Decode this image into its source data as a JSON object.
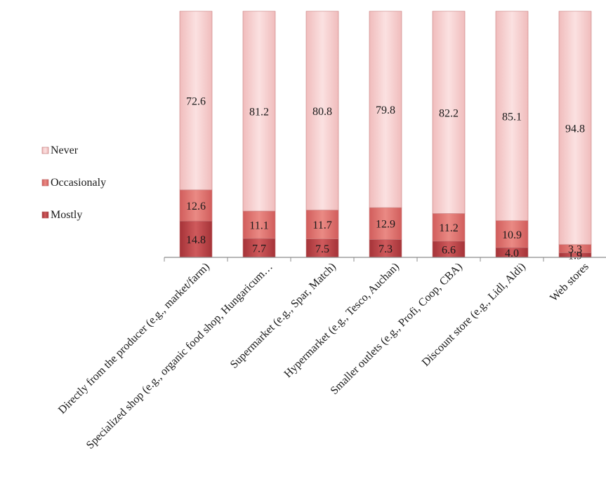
{
  "chart_data": {
    "type": "bar",
    "stacked": true,
    "orientation": "vertical",
    "categories": [
      "Directly from the producer (e.g., market/farm)",
      "Specialized shop (e.g., organic food shop, Hungaricum…",
      "Supermarket (e.g., Spar, Match)",
      "Hypermarket (e.g., Tesco, Auchan)",
      "Smaller outlets (e.g., Profi, Coop, CBA)",
      "Discount store (e.g., Lidl, Aldi)",
      "Web stores"
    ],
    "series": [
      {
        "name": "Mostly",
        "color": "#c0474a",
        "values": [
          14.8,
          7.7,
          7.5,
          7.3,
          6.6,
          4.0,
          1.9
        ]
      },
      {
        "name": "Occasionaly",
        "color": "#dd6b66",
        "values": [
          12.6,
          11.1,
          11.7,
          12.9,
          11.2,
          10.9,
          3.3
        ]
      },
      {
        "name": "Never",
        "color": "#f4c9c9",
        "values": [
          72.6,
          81.2,
          80.8,
          79.8,
          82.2,
          85.1,
          94.8
        ]
      }
    ],
    "value_labels": [
      [
        "14.8",
        "7.7",
        "7.5",
        "7.3",
        "6.6",
        "4.0",
        "1.9"
      ],
      [
        "12.6",
        "11.1",
        "11.7",
        "12.9",
        "11.2",
        "10.9",
        "3.3"
      ],
      [
        "72.6",
        "81.2",
        "80.8",
        "79.8",
        "82.2",
        "85.1",
        "94.8"
      ]
    ],
    "legend_order": [
      "Never",
      "Occasionaly",
      "Mostly"
    ],
    "legend_position": "left",
    "ylim": [
      0,
      100
    ],
    "title": "",
    "xlabel": "",
    "ylabel": "",
    "grid": false
  }
}
